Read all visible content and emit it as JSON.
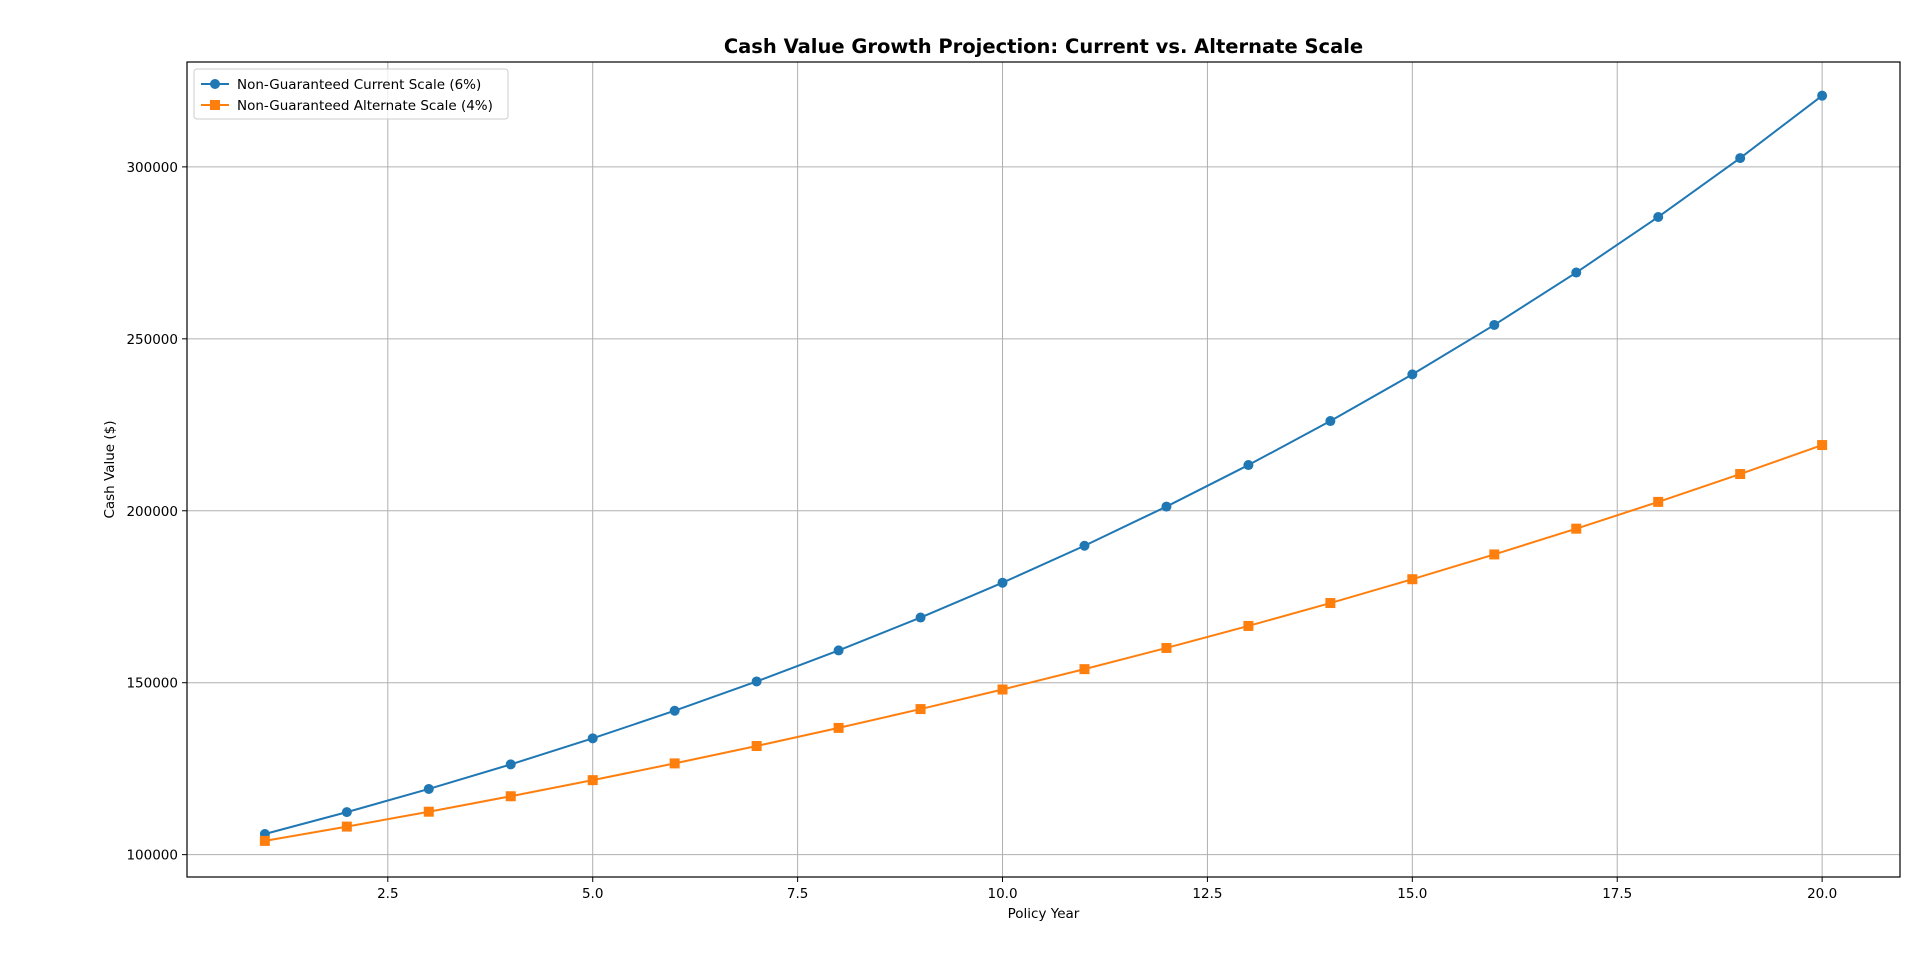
{
  "chart_data": {
    "type": "line",
    "title": "Cash Value Growth Projection: Current vs. Alternate Scale",
    "xlabel": "Policy Year",
    "ylabel": "Cash Value ($)",
    "xlim": [
      0.05,
      20.95
    ],
    "ylim": [
      93500,
      330500
    ],
    "x_ticks": [
      2.5,
      5.0,
      7.5,
      10.0,
      12.5,
      15.0,
      17.5,
      20.0
    ],
    "x_tick_labels": [
      "2.5",
      "5.0",
      "7.5",
      "10.0",
      "12.5",
      "15.0",
      "17.5",
      "20.0"
    ],
    "y_ticks": [
      100000,
      150000,
      200000,
      250000,
      300000
    ],
    "y_tick_labels": [
      "100000",
      "150000",
      "200000",
      "250000",
      "300000"
    ],
    "grid": true,
    "legend_position": "top-left",
    "x": [
      1,
      2,
      3,
      4,
      5,
      6,
      7,
      8,
      9,
      10,
      11,
      12,
      13,
      14,
      15,
      16,
      17,
      18,
      19,
      20
    ],
    "series": [
      {
        "name": "Non-Guaranteed Current Scale (6%)",
        "color": "#1f77b4",
        "marker": "circle",
        "values": [
          106000,
          112360,
          119102,
          126248,
          133823,
          141852,
          150363,
          159385,
          168948,
          179085,
          189830,
          201220,
          213293,
          226090,
          239656,
          254035,
          269277,
          285434,
          302560,
          320714
        ]
      },
      {
        "name": "Non-Guaranteed Alternate Scale (4%)",
        "color": "#ff7f0e",
        "marker": "square",
        "values": [
          104000,
          108160,
          112486,
          116986,
          121665,
          126532,
          131593,
          136857,
          142331,
          148024,
          153945,
          160103,
          166507,
          173168,
          180094,
          187298,
          194790,
          202582,
          210685,
          219112
        ]
      }
    ]
  }
}
